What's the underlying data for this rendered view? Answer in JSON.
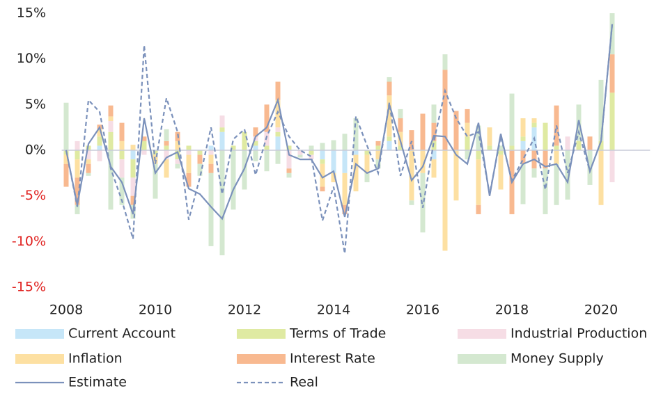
{
  "chart_data": {
    "type": "bar",
    "stacked": true,
    "x": [
      2008,
      2008.25,
      2008.5,
      2008.75,
      2009,
      2009.25,
      2009.5,
      2009.75,
      2010,
      2010.25,
      2010.5,
      2010.75,
      2011,
      2011.25,
      2011.5,
      2011.75,
      2012,
      2012.25,
      2012.5,
      2012.75,
      2013,
      2013.25,
      2013.5,
      2013.75,
      2014,
      2014.25,
      2014.5,
      2014.75,
      2015,
      2015.25,
      2015.5,
      2015.75,
      2016,
      2016.25,
      2016.5,
      2016.75,
      2017,
      2017.25,
      2017.5,
      2017.75,
      2018,
      2018.25,
      2018.5,
      2018.75,
      2019,
      2019.25,
      2019.5,
      2019.75,
      2020,
      2020.25
    ],
    "xlim": [
      2007.9,
      2021.1
    ],
    "xticks": [
      2008,
      2010,
      2012,
      2014,
      2016,
      2018,
      2020
    ],
    "ylim": [
      -15,
      15
    ],
    "yticks": [
      {
        "value": -15,
        "label": "-15%"
      },
      {
        "value": -10,
        "label": "-10%"
      },
      {
        "value": -5,
        "label": "-5%"
      },
      {
        "value": 0,
        "label": "0%"
      },
      {
        "value": 5,
        "label": "5%"
      },
      {
        "value": 10,
        "label": "10%"
      },
      {
        "value": 15,
        "label": "15%"
      }
    ],
    "negative_tick_color": "#e0201e",
    "zero_line_color": "#c8ccd8",
    "series": [
      {
        "name": "Current Account",
        "type": "bar",
        "color": "#c6e6f8",
        "values": [
          0,
          0,
          0,
          0.5,
          0,
          0,
          -1,
          0,
          0,
          0,
          0,
          0,
          0,
          0.5,
          2,
          0,
          0,
          0.5,
          0,
          1.5,
          0,
          0,
          0,
          -1,
          -2.5,
          -2.5,
          -0.5,
          0,
          0,
          1,
          0,
          0,
          0,
          -1,
          0,
          0,
          0,
          0,
          0,
          0,
          0,
          1,
          2.5,
          0,
          0,
          0,
          0,
          0,
          0,
          0
        ]
      },
      {
        "name": "Terms of Trade",
        "type": "bar",
        "color": "#dfeaa2",
        "values": [
          -0.5,
          -1,
          0.5,
          1,
          2,
          -1,
          -2,
          1,
          -0.5,
          0.5,
          -1,
          0.5,
          -0.5,
          0,
          0.5,
          0.5,
          2,
          0.5,
          0.5,
          0.5,
          0.5,
          0,
          -0.5,
          -0.5,
          0,
          0,
          0,
          -0.5,
          0.5,
          0.5,
          0.5,
          0,
          0,
          1,
          0,
          0,
          1.5,
          -1,
          0.5,
          -0.5,
          0.5,
          0.5,
          0.5,
          3,
          0.5,
          0,
          1,
          0,
          1,
          6.3
        ]
      },
      {
        "name": "Industrial Production",
        "type": "bar",
        "color": "#f6dde5",
        "values": [
          0,
          1,
          -1,
          -1.2,
          1.2,
          -2,
          -2,
          -0.5,
          0,
          -1,
          -0.5,
          -0.5,
          0,
          -0.5,
          1.3,
          0,
          0,
          0.5,
          1.5,
          0.5,
          -2,
          -0.5,
          -0.5,
          0,
          0,
          0,
          0,
          0,
          0,
          0,
          0,
          0,
          0,
          0,
          0,
          0,
          0,
          0,
          0,
          0,
          0,
          0,
          0,
          0,
          0,
          1.5,
          0,
          0,
          0,
          -3.5
        ]
      },
      {
        "name": "Inflation",
        "type": "bar",
        "color": "#fde0a2",
        "values": [
          -1,
          -2,
          -0.5,
          0.8,
          0.5,
          1,
          0.6,
          0,
          -1,
          -2,
          1,
          -2,
          0,
          -1,
          0,
          0,
          0,
          0,
          0,
          3,
          0,
          0,
          0,
          -2.5,
          -1,
          -3.5,
          -4,
          -2,
          -1,
          4.5,
          1.5,
          -5.5,
          -2.5,
          -2,
          -11,
          -5.5,
          1.5,
          -5,
          2,
          -3.8,
          0,
          2,
          0.5,
          0,
          -1.5,
          0,
          0,
          0,
          -6,
          0
        ]
      },
      {
        "name": "Interest Rate",
        "type": "bar",
        "color": "#f8b990",
        "values": [
          -2.5,
          -3,
          -1,
          0.5,
          1.2,
          2,
          -1,
          0.5,
          0,
          0.5,
          1,
          -1.5,
          -1,
          -1,
          0,
          0,
          0,
          1,
          3,
          2,
          -0.5,
          0,
          0,
          -0.5,
          0,
          -1,
          0,
          0,
          0.5,
          1.5,
          1.5,
          2.2,
          4,
          2,
          8.8,
          4.3,
          1.5,
          -1,
          0,
          0,
          -7,
          -1.5,
          -2,
          -2,
          4.4,
          0,
          0,
          1.5,
          0,
          4.2
        ]
      },
      {
        "name": "Money Supply",
        "type": "bar",
        "color": "#d4e8d0",
        "values": [
          5.2,
          -1,
          -0.3,
          0,
          -6.5,
          -3,
          -1.5,
          0,
          -3.8,
          1.3,
          -0.5,
          0,
          -1.3,
          -8,
          -11.5,
          -6.5,
          -4.3,
          -1.2,
          -2.3,
          -1.5,
          -0.5,
          -0.3,
          0.5,
          0.8,
          1.1,
          1.8,
          3.5,
          -1,
          -1,
          0.5,
          1,
          -0.5,
          -6.5,
          2,
          1.7,
          0,
          -1,
          2.7,
          0,
          0.5,
          5.7,
          -4.4,
          -1,
          -5,
          -4.5,
          -5.4,
          4,
          -3.8,
          6.7,
          4.5
        ]
      },
      {
        "name": "Estimate",
        "type": "line",
        "dashed": false,
        "color": "#7b91bb",
        "values": [
          0,
          -6,
          0.7,
          2.5,
          -1.8,
          -3.5,
          -7,
          3.5,
          -2.5,
          -0.8,
          -0.2,
          -4.2,
          -4.8,
          -6.2,
          -7.5,
          -4.3,
          -2,
          1.5,
          2.5,
          5.5,
          -0.5,
          -1,
          -1,
          -3,
          -2.3,
          -7.3,
          -1.5,
          -2.5,
          -2,
          5,
          1,
          -3.3,
          -1.8,
          1.6,
          1.5,
          -0.5,
          -1.5,
          3,
          -5,
          1.8,
          -3.5,
          -1.5,
          -1,
          -1.8,
          -1.5,
          -3.5,
          3.3,
          -2.3,
          1,
          13.8
        ]
      },
      {
        "name": "Real",
        "type": "line",
        "dashed": true,
        "color": "#7b91bb",
        "values": [
          0,
          -6.2,
          5.5,
          4.2,
          -2,
          -5.5,
          -9.7,
          11.5,
          -1.5,
          5.7,
          2,
          -7.6,
          -3,
          2.5,
          -4.8,
          1.2,
          2.3,
          -2.7,
          1.5,
          4.2,
          1.5,
          0,
          -0.7,
          -7.7,
          -4,
          -11.3,
          3.7,
          0.5,
          -2.5,
          5.2,
          -2.8,
          1,
          -6.3,
          1,
          6.5,
          3.5,
          1.5,
          2,
          -4.8,
          1.5,
          -3.3,
          -1,
          1.3,
          -4.3,
          2.7,
          -2.5,
          2,
          -2.3,
          1,
          13.8
        ]
      }
    ]
  }
}
